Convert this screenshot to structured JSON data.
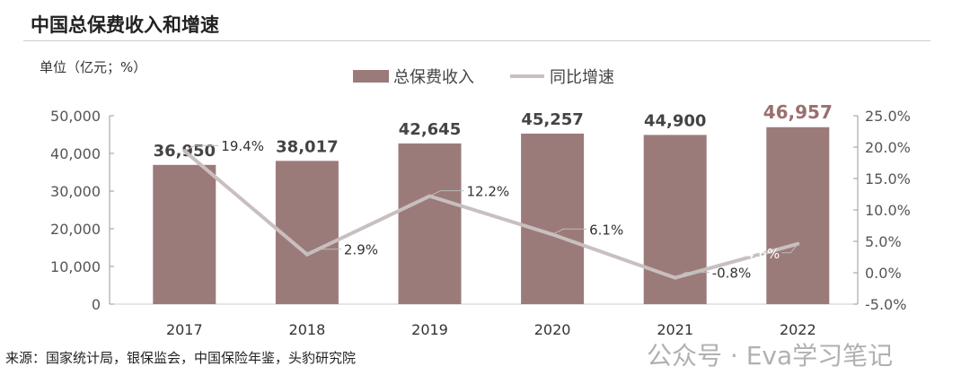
{
  "chart_data": {
    "type": "bar+line",
    "title": "中国总保费收入和增速",
    "unit_label": "单位（亿元；%）",
    "categories": [
      "2017",
      "2018",
      "2019",
      "2020",
      "2021",
      "2022"
    ],
    "series": [
      {
        "name": "总保费收入",
        "type": "bar",
        "axis": "left",
        "values": [
          36950,
          38017,
          42645,
          45257,
          44900,
          46957
        ],
        "labels": [
          "36,950",
          "38,017",
          "42,645",
          "45,257",
          "44,900",
          "46,957"
        ]
      },
      {
        "name": "同比增速",
        "type": "line",
        "axis": "right",
        "values": [
          19.4,
          2.9,
          12.2,
          6.1,
          -0.8,
          4.6
        ],
        "labels": [
          "19.4%",
          "2.9%",
          "12.2%",
          "6.1%",
          "-0.8%",
          "4.6%"
        ]
      }
    ],
    "left_axis": {
      "ylim": [
        0,
        50000
      ],
      "ticks": [
        "0",
        "10,000",
        "20,000",
        "30,000",
        "40,000",
        "50,000"
      ]
    },
    "right_axis": {
      "ylim": [
        -5,
        25
      ],
      "ticks": [
        "-5.0%",
        "0.0%",
        "5.0%",
        "10.0%",
        "15.0%",
        "20.0%",
        "25.0%"
      ]
    },
    "legend_position": "top-center",
    "grid": false,
    "colors": {
      "bar": "#9b7b7a",
      "line": "#c9bfbf",
      "highlight_label": "#9b6f6e"
    }
  },
  "source": "来源：国家统计局，银保监会，中国保险年鉴，头豹研究院",
  "watermark": "公众号 · Eva学习笔记"
}
